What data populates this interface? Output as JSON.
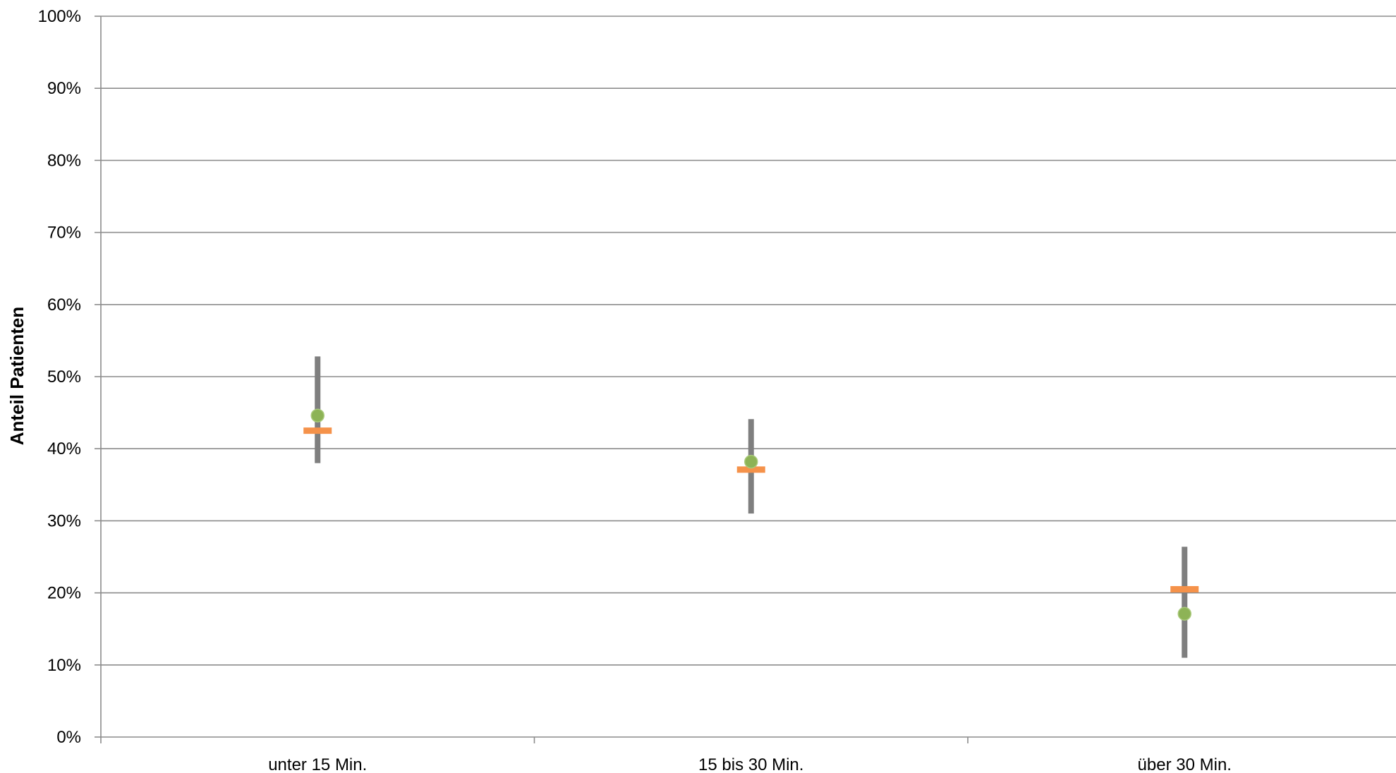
{
  "chart_data": {
    "type": "scatter",
    "title": "",
    "xlabel": "",
    "ylabel": "Anteil Patienten",
    "categories": [
      "unter 15 Min.",
      "15 bis 30 Min.",
      "über 30 Min."
    ],
    "y_ticks": [
      "0%",
      "10%",
      "20%",
      "30%",
      "40%",
      "50%",
      "60%",
      "70%",
      "80%",
      "90%",
      "100%"
    ],
    "ylim": [
      0,
      100
    ],
    "grid": true,
    "legend": "none",
    "series": [
      {
        "values": [
          44.6,
          38.2,
          17.1
        ],
        "color": "#8db356",
        "marker": "circle"
      },
      {
        "values": [
          42.5,
          37.1,
          20.5
        ],
        "color": "#f5924a",
        "marker": "dash"
      }
    ],
    "ranges": {
      "low": [
        38.0,
        31.0,
        11.0
      ],
      "high": [
        52.8,
        44.1,
        26.4
      ],
      "color": "#7f7f7f"
    },
    "colors": {
      "grid": "#8c8c8c",
      "axis": "#8c8c8c"
    }
  }
}
